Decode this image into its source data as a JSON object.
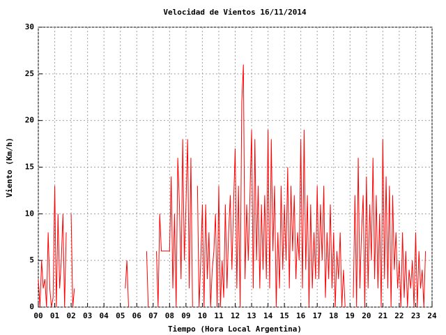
{
  "chart_data": {
    "type": "line",
    "title": "Velocidad de Vientos 16/11/2014",
    "x_label": "Tiempo (Hora Local Argentina)",
    "y_label": "Viento (Km/h)",
    "grid": true,
    "xlim": [
      0,
      24
    ],
    "ylim": [
      0,
      30
    ],
    "xticks": [
      {
        "value": 0,
        "label": "00"
      },
      {
        "value": 1,
        "label": "01"
      },
      {
        "value": 2,
        "label": "02"
      },
      {
        "value": 3,
        "label": "03"
      },
      {
        "value": 4,
        "label": "04"
      },
      {
        "value": 5,
        "label": "05"
      },
      {
        "value": 6,
        "label": "06"
      },
      {
        "value": 7,
        "label": "07"
      },
      {
        "value": 8,
        "label": "08"
      },
      {
        "value": 9,
        "label": "09"
      },
      {
        "value": 10,
        "label": "10"
      },
      {
        "value": 11,
        "label": "11"
      },
      {
        "value": 12,
        "label": "12"
      },
      {
        "value": 13,
        "label": "13"
      },
      {
        "value": 14,
        "label": "14"
      },
      {
        "value": 15,
        "label": "15"
      },
      {
        "value": 16,
        "label": "16"
      },
      {
        "value": 17,
        "label": "17"
      },
      {
        "value": 18,
        "label": "18"
      },
      {
        "value": 19,
        "label": "19"
      },
      {
        "value": 20,
        "label": "20"
      },
      {
        "value": 21,
        "label": "21"
      },
      {
        "value": 22,
        "label": "22"
      },
      {
        "value": 23,
        "label": "23"
      },
      {
        "value": 24,
        "label": "24"
      }
    ],
    "yticks": [
      0,
      5,
      10,
      15,
      20,
      25,
      30
    ],
    "x": [
      0,
      0.1,
      0.2,
      0.3,
      0.4,
      0.5,
      0.6,
      0.7,
      0.8,
      0.9,
      1,
      1.1,
      1.2,
      1.3,
      1.4,
      1.5,
      1.6,
      1.7,
      1.8,
      1.9,
      2,
      2.1,
      2.2,
      2.3,
      2.4,
      2.5,
      2.6,
      2.7,
      2.8,
      2.9,
      3,
      3.1,
      3.2,
      3.3,
      3.4,
      3.5,
      3.6,
      3.7,
      3.8,
      3.9,
      4,
      4.1,
      4.2,
      4.3,
      4.4,
      4.5,
      4.6,
      4.7,
      4.8,
      4.9,
      5,
      5.1,
      5.2,
      5.3,
      5.4,
      5.5,
      5.6,
      5.7,
      5.8,
      5.9,
      6,
      6.1,
      6.2,
      6.3,
      6.4,
      6.5,
      6.6,
      6.7,
      6.8,
      6.9,
      7,
      7.1,
      7.2,
      7.3,
      7.4,
      7.5,
      7.6,
      7.7,
      7.8,
      7.9,
      8,
      8.1,
      8.2,
      8.3,
      8.4,
      8.5,
      8.6,
      8.7,
      8.8,
      8.9,
      9,
      9.1,
      9.2,
      9.3,
      9.4,
      9.5,
      9.6,
      9.7,
      9.8,
      9.9,
      10,
      10.1,
      10.2,
      10.3,
      10.4,
      10.5,
      10.6,
      10.7,
      10.8,
      10.9,
      11,
      11.1,
      11.2,
      11.3,
      11.4,
      11.5,
      11.6,
      11.7,
      11.8,
      11.9,
      12,
      12.1,
      12.2,
      12.3,
      12.4,
      12.5,
      12.6,
      12.7,
      12.8,
      12.9,
      13,
      13.1,
      13.2,
      13.3,
      13.4,
      13.5,
      13.6,
      13.7,
      13.8,
      13.9,
      14,
      14.1,
      14.2,
      14.3,
      14.4,
      14.5,
      14.6,
      14.7,
      14.8,
      14.9,
      15,
      15.1,
      15.2,
      15.3,
      15.4,
      15.5,
      15.6,
      15.7,
      15.8,
      15.9,
      16,
      16.1,
      16.2,
      16.3,
      16.4,
      16.5,
      16.6,
      16.7,
      16.8,
      16.9,
      17,
      17.1,
      17.2,
      17.3,
      17.4,
      17.5,
      17.6,
      17.7,
      17.8,
      17.9,
      18,
      18.1,
      18.2,
      18.3,
      18.4,
      18.5,
      18.6,
      18.7,
      18.8,
      18.9,
      19,
      19.1,
      19.2,
      19.3,
      19.4,
      19.5,
      19.6,
      19.7,
      19.8,
      19.9,
      20,
      20.1,
      20.2,
      20.3,
      20.4,
      20.5,
      20.6,
      20.7,
      20.8,
      20.9,
      21,
      21.1,
      21.2,
      21.3,
      21.4,
      21.5,
      21.6,
      21.7,
      21.8,
      21.9,
      22,
      22.1,
      22.2,
      22.3,
      22.4,
      22.5,
      22.6,
      22.7,
      22.8,
      22.9,
      23,
      23.1,
      23.2,
      23.3,
      23.4,
      23.5,
      23.6,
      23.7,
      23.8,
      23.9
    ],
    "series": [
      {
        "color": "#ff0000",
        "values": [
          3,
          0,
          5,
          2,
          3,
          0,
          8,
          2,
          0,
          1,
          13,
          0,
          10,
          2,
          5,
          10,
          0,
          8,
          null,
          null,
          10,
          0,
          2,
          null,
          null,
          null,
          null,
          null,
          null,
          null,
          null,
          null,
          null,
          null,
          null,
          null,
          null,
          null,
          null,
          null,
          null,
          null,
          null,
          null,
          null,
          null,
          null,
          null,
          null,
          null,
          null,
          null,
          null,
          2,
          5,
          0,
          null,
          null,
          null,
          null,
          null,
          null,
          null,
          null,
          null,
          null,
          6,
          0,
          null,
          null,
          null,
          null,
          6,
          0,
          10,
          6,
          6,
          6,
          6,
          6,
          6,
          14,
          2,
          10,
          0,
          16,
          11,
          3,
          18,
          5,
          11,
          18,
          2,
          16,
          0,
          null,
          null,
          13,
          0,
          5,
          11,
          0,
          11,
          3,
          8,
          0,
          4,
          6,
          10,
          0,
          13,
          0,
          5,
          1,
          11,
          2,
          8,
          12,
          4,
          11,
          17,
          2,
          13,
          0,
          22,
          26,
          3,
          11,
          5,
          12,
          19,
          2,
          18,
          5,
          13,
          2,
          11,
          4,
          12,
          3,
          19,
          2,
          18,
          6,
          13,
          0,
          8,
          2,
          13,
          4,
          11,
          5,
          15,
          2,
          13,
          6,
          12,
          3,
          8,
          5,
          18,
          2,
          19,
          4,
          12,
          0,
          11,
          2,
          8,
          3,
          13,
          3,
          11,
          5,
          13,
          1,
          8,
          3,
          11,
          2,
          8,
          0,
          6,
          3,
          8,
          0,
          4,
          0,
          null,
          null,
          null,
          null,
          1,
          12,
          0,
          16,
          2,
          8,
          12,
          0,
          14,
          2,
          11,
          5,
          16,
          3,
          12,
          2,
          10,
          0,
          18,
          3,
          14,
          2,
          13,
          0,
          12,
          4,
          8,
          2,
          5,
          0,
          8,
          1,
          6,
          0,
          4,
          2,
          5,
          0,
          8,
          0,
          6,
          2,
          4,
          0,
          6,
          null,
          null,
          null
        ]
      }
    ]
  }
}
